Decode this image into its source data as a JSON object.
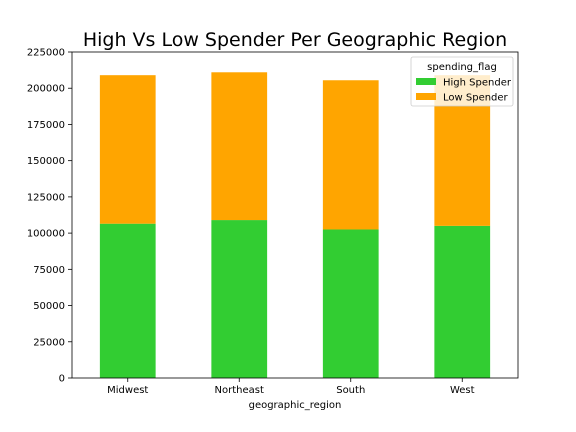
{
  "chart_data": {
    "type": "bar",
    "stacked": true,
    "title": "High Vs Low Spender Per Geographic Region",
    "xlabel": "geographic_region",
    "ylabel": "",
    "categories": [
      "Midwest",
      "Northeast",
      "South",
      "West"
    ],
    "ylim": [
      0,
      225000
    ],
    "yticks": [
      0,
      25000,
      50000,
      75000,
      100000,
      125000,
      150000,
      175000,
      200000,
      225000
    ],
    "legend": {
      "title": "spending_flag",
      "position": "top-right"
    },
    "series": [
      {
        "name": "High Spender",
        "color": "#32cd32",
        "values": [
          106500,
          109000,
          102500,
          105000
        ]
      },
      {
        "name": "Low Spender",
        "color": "#ffa500",
        "values": [
          102500,
          102000,
          103000,
          104000
        ]
      }
    ]
  }
}
